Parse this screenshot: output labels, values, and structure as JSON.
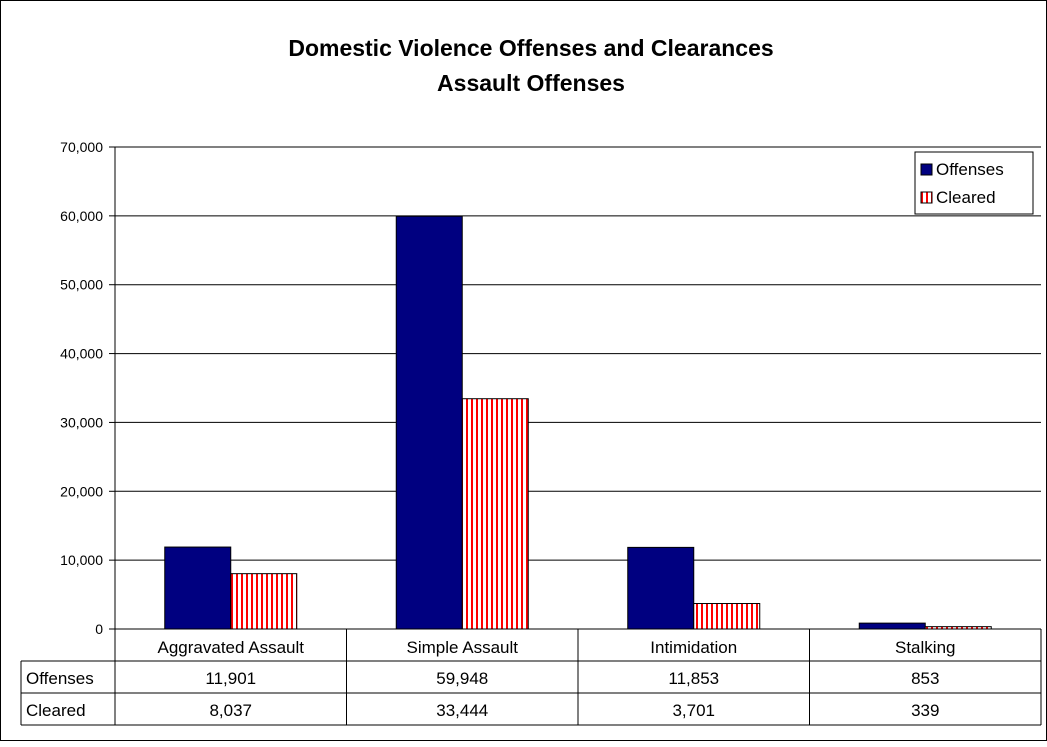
{
  "chart_data": {
    "type": "bar",
    "title": "Domestic Violence Offenses and Clearances",
    "subtitle": "Assault Offenses",
    "categories": [
      "Aggravated Assault",
      "Simple Assault",
      "Intimidation",
      "Stalking"
    ],
    "series": [
      {
        "name": "Offenses",
        "values": [
          11901,
          59948,
          11853,
          853
        ],
        "color": "#000080",
        "pattern": "solid"
      },
      {
        "name": "Cleared",
        "values": [
          8037,
          33444,
          3701,
          339
        ],
        "color": "#ff0000",
        "pattern": "vertical-stripes"
      }
    ],
    "ylim": [
      0,
      70000
    ],
    "yticks": [
      "0",
      "10,000",
      "20,000",
      "30,000",
      "40,000",
      "50,000",
      "60,000",
      "70,000"
    ],
    "grid": true,
    "legend": "top-right",
    "data_table": {
      "rows": [
        {
          "label": "Offenses",
          "cells": [
            "11,901",
            "59,948",
            "11,853",
            "853"
          ]
        },
        {
          "label": "Cleared",
          "cells": [
            "8,037",
            "33,444",
            "3,701",
            "339"
          ]
        }
      ]
    }
  }
}
